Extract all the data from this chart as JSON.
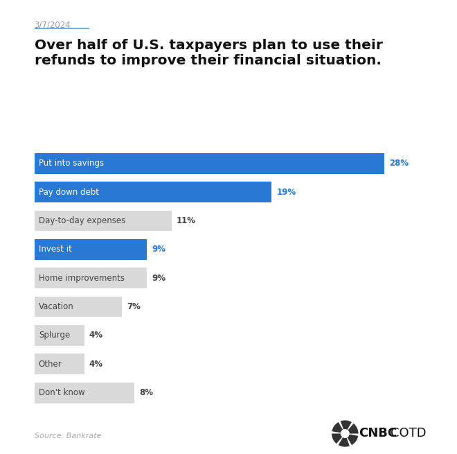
{
  "date": "3/7/2024",
  "title": "Over half of U.S. taxpayers plan to use their\nrefunds to improve their financial situation.",
  "categories": [
    "Put into savings",
    "Pay down debt",
    "Day-to-day expenses",
    "Invest it",
    "Home improvements",
    "Vacation",
    "Splurge",
    "Other",
    "Don't know"
  ],
  "values": [
    28,
    19,
    11,
    9,
    9,
    7,
    4,
    4,
    8
  ],
  "bar_colors": [
    "#2878d4",
    "#2878d4",
    "#d9d9d9",
    "#2878d4",
    "#d9d9d9",
    "#d9d9d9",
    "#d9d9d9",
    "#d9d9d9",
    "#d9d9d9"
  ],
  "label_colors": [
    "#ffffff",
    "#ffffff",
    "#444444",
    "#ffffff",
    "#444444",
    "#444444",
    "#444444",
    "#444444",
    "#444444"
  ],
  "value_colors": [
    "#2878d4",
    "#2878d4",
    "#444444",
    "#2878d4",
    "#444444",
    "#444444",
    "#444444",
    "#444444",
    "#444444"
  ],
  "source": "Source: Bankrate",
  "background_color": "#ffffff",
  "max_value": 30,
  "date_color": "#999999",
  "underline_color": "#6aaee8",
  "title_color": "#111111",
  "bar_height": 0.72
}
